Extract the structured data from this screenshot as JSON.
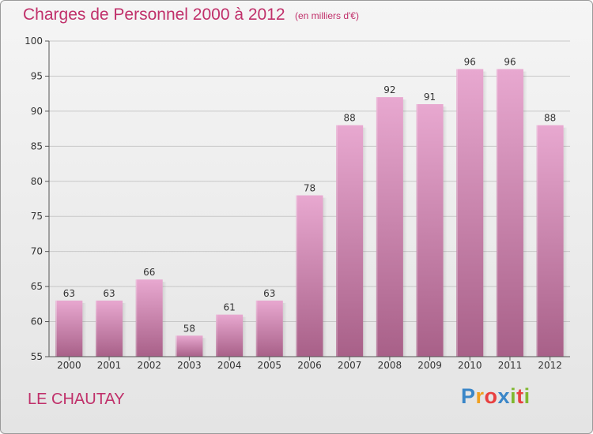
{
  "title": "Charges de Personnel 2000 à 2012",
  "subtitle": "(en milliers d'€)",
  "commune": "LE CHAUTAY",
  "brand": {
    "name": "Proxiti",
    "letters": [
      "P",
      "r",
      "o",
      "x",
      "i",
      "t",
      "i"
    ],
    "colors": [
      "#3a86c8",
      "#f0a020",
      "#e84040",
      "#3a86c8",
      "#80b830",
      "#e84040",
      "#80b830"
    ]
  },
  "colors": {
    "title": "#c0306a",
    "bar_top": "#e8a8d0",
    "bar_bottom": "#a86088",
    "axis": "#555555",
    "grid": "#c8c8c8",
    "label": "#333333"
  },
  "chart_data": {
    "type": "bar",
    "title": "Charges de Personnel 2000 à 2012",
    "subtitle": "(en milliers d'€)",
    "categories": [
      "2000",
      "2001",
      "2002",
      "2003",
      "2004",
      "2005",
      "2006",
      "2007",
      "2008",
      "2009",
      "2010",
      "2011",
      "2012"
    ],
    "values": [
      63,
      63,
      66,
      58,
      61,
      63,
      78,
      88,
      92,
      91,
      96,
      96,
      88
    ],
    "ylim": [
      55,
      100
    ],
    "yticks": [
      55,
      60,
      65,
      70,
      75,
      80,
      85,
      90,
      95,
      100
    ],
    "grid": true,
    "data_labels": true,
    "xlabel": "",
    "ylabel": ""
  }
}
